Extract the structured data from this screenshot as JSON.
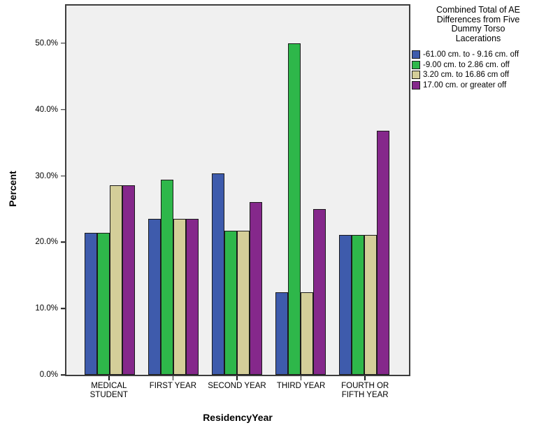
{
  "chart_data": {
    "type": "bar",
    "title": "",
    "xlabel": "ResidencyYear",
    "ylabel": "Percent",
    "categories": [
      "MEDICAL STUDENT",
      "FIRST YEAR",
      "SECOND YEAR",
      "THIRD YEAR",
      "FOURTH OR FIFTH YEAR"
    ],
    "category_lines": [
      [
        "MEDICAL",
        "STUDENT"
      ],
      [
        "FIRST YEAR"
      ],
      [
        "SECOND YEAR"
      ],
      [
        "THIRD YEAR"
      ],
      [
        "FOURTH OR",
        "FIFTH YEAR"
      ]
    ],
    "series": [
      {
        "name": "-61.00 cm. to - 9.16 cm. off",
        "color": "#3E5BAC",
        "values": [
          21.4,
          23.5,
          30.4,
          12.5,
          21.1
        ]
      },
      {
        "name": "-9.00 cm. to 2.86 cm. off",
        "color": "#2EB74A",
        "values": [
          21.4,
          29.4,
          21.7,
          50.0,
          21.1
        ]
      },
      {
        "name": "3.20 cm. to 16.86 cm off",
        "color": "#D4CE99",
        "values": [
          28.6,
          23.5,
          21.7,
          12.5,
          21.1
        ]
      },
      {
        "name": "17.00 cm. or greater off",
        "color": "#85288B",
        "values": [
          28.6,
          23.5,
          26.1,
          25.0,
          36.8
        ]
      }
    ],
    "y_tick_labels": [
      "0.0%",
      "10.0%",
      "20.0%",
      "30.0%",
      "40.0%",
      "50.0%"
    ],
    "y_tick_values": [
      0,
      10,
      20,
      30,
      40,
      50
    ],
    "ylim": [
      0,
      55.7
    ],
    "grid": false,
    "legend_position": "top-right",
    "legend_title": "Combined Total of AE Differences from Five Dummy Torso Lacerations",
    "legend_title_lines": [
      "Combined Total of AE",
      "Differences from Five",
      "Dummy Torso",
      "Lacerations"
    ],
    "plot_background": "#F0F0F0",
    "bar_border_color": "#1A1A1A"
  }
}
